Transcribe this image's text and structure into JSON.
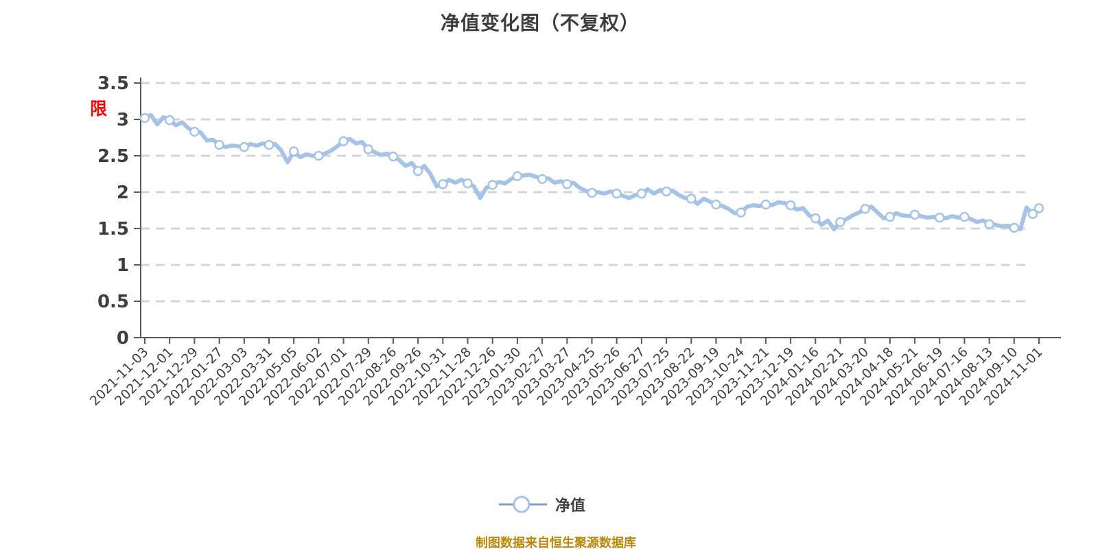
{
  "title": "净值变化图（不复权）",
  "restriction_flag": "限",
  "legend": {
    "label": "净值"
  },
  "source_note": "制图数据来自恒生聚源数据库",
  "colors": {
    "background": "#FFFFFF",
    "title_text": "#3D3D3D",
    "axis_text": "#3F3F3F",
    "axis_line": "#58595B",
    "gridline": "#D4D4D4",
    "line": "#A6C3E6",
    "marker_fill": "#FFFFFF",
    "legend_line": "#7E9CCC",
    "source_text": "#B8860B",
    "flag_text": "#FF0000"
  },
  "chart_data": {
    "type": "line",
    "title": "净值变化图（不复权）",
    "xlabel": "",
    "ylabel": "",
    "ylim": [
      0,
      3.5
    ],
    "y_ticks": [
      "0",
      "0.5",
      "1",
      "1.5",
      "2",
      "2.5",
      "3",
      "3.5"
    ],
    "grid": "horizontal-dashed",
    "legend_position": "bottom-center",
    "x_tick_labels": [
      "2021-11-03",
      "2021-12-01",
      "2021-12-29",
      "2022-01-27",
      "2022-03-03",
      "2022-03-31",
      "2022-05-05",
      "2022-06-02",
      "2022-07-01",
      "2022-07-29",
      "2022-08-26",
      "2022-09-26",
      "2022-10-31",
      "2022-11-28",
      "2022-12-26",
      "2023-01-30",
      "2023-02-27",
      "2023-03-27",
      "2023-04-25",
      "2023-05-26",
      "2023-06-27",
      "2023-07-25",
      "2023-08-22",
      "2023-09-19",
      "2023-10-24",
      "2023-11-21",
      "2023-12-19",
      "2024-01-16",
      "2024-02-21",
      "2024-03-20",
      "2024-04-18",
      "2024-05-21",
      "2024-06-19",
      "2024-07-16",
      "2024-08-13",
      "2024-09-10",
      "2024-11-01"
    ],
    "points_per_tick_interval": 4,
    "marker": "white-circle-at-each-tick",
    "extra_marker_indices": [
      143
    ],
    "series": [
      {
        "name": "净值",
        "values": [
          3.02,
          3.06,
          2.93,
          3.03,
          2.99,
          2.92,
          2.96,
          2.88,
          2.83,
          2.82,
          2.71,
          2.72,
          2.65,
          2.62,
          2.64,
          2.63,
          2.62,
          2.66,
          2.64,
          2.67,
          2.65,
          2.66,
          2.57,
          2.41,
          2.56,
          2.48,
          2.52,
          2.5,
          2.5,
          2.53,
          2.57,
          2.63,
          2.7,
          2.73,
          2.67,
          2.69,
          2.59,
          2.55,
          2.51,
          2.53,
          2.49,
          2.44,
          2.36,
          2.4,
          2.29,
          2.36,
          2.25,
          2.08,
          2.11,
          2.17,
          2.13,
          2.17,
          2.12,
          2.08,
          1.92,
          2.06,
          2.1,
          2.14,
          2.12,
          2.18,
          2.22,
          2.23,
          2.24,
          2.21,
          2.18,
          2.19,
          2.13,
          2.15,
          2.11,
          2.13,
          2.06,
          2.02,
          1.99,
          2.0,
          1.98,
          2.01,
          1.98,
          1.95,
          1.92,
          1.96,
          1.98,
          2.04,
          1.98,
          2.03,
          2.01,
          2.02,
          1.96,
          1.92,
          1.91,
          1.84,
          1.91,
          1.87,
          1.83,
          1.81,
          1.77,
          1.71,
          1.72,
          1.8,
          1.82,
          1.81,
          1.83,
          1.82,
          1.86,
          1.85,
          1.82,
          1.76,
          1.78,
          1.68,
          1.64,
          1.55,
          1.61,
          1.49,
          1.59,
          1.63,
          1.68,
          1.72,
          1.77,
          1.8,
          1.72,
          1.64,
          1.66,
          1.71,
          1.68,
          1.67,
          1.69,
          1.67,
          1.65,
          1.66,
          1.65,
          1.64,
          1.67,
          1.65,
          1.66,
          1.63,
          1.59,
          1.61,
          1.56,
          1.55,
          1.53,
          1.54,
          1.51,
          1.49,
          1.79,
          1.7,
          1.78
        ]
      }
    ]
  }
}
